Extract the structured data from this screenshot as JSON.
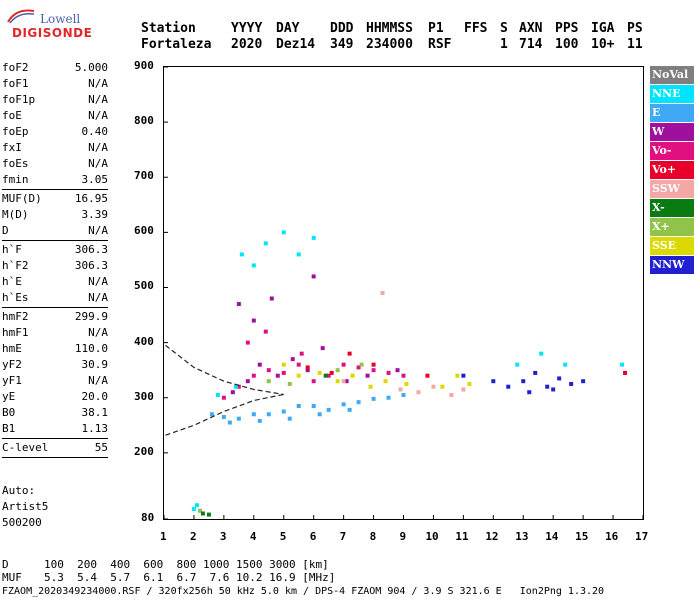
{
  "logo": {
    "line1": "Lowell",
    "line2": "DIGISONDE"
  },
  "header": {
    "labels": {
      "station": "Station",
      "yyyy": "YYYY",
      "day": "DAY",
      "ddd": "DDD",
      "hhmmss": "HHMMSS",
      "p1": "P1",
      "ffs": "FFS",
      "s": "S",
      "axn": "AXN",
      "pps": "PPS",
      "iga": "IGA",
      "ps": "PS"
    },
    "values": {
      "station": "Fortaleza",
      "yyyy": "2020",
      "day": "Dez14",
      "ddd": "349",
      "hhmmss": "234000",
      "p1": "RSF",
      "ffs": "",
      "s": "1",
      "axn": "714",
      "pps": "100",
      "iga": "10+",
      "ps": "11"
    }
  },
  "params": {
    "group1": [
      {
        "k": "foF2",
        "v": "5.000"
      },
      {
        "k": "foF1",
        "v": "N/A"
      },
      {
        "k": "foF1p",
        "v": "N/A"
      },
      {
        "k": "foE",
        "v": "N/A"
      },
      {
        "k": "foEp",
        "v": "0.40"
      },
      {
        "k": "fxI",
        "v": "N/A"
      },
      {
        "k": "foEs",
        "v": "N/A"
      },
      {
        "k": "fmin",
        "v": "3.05"
      }
    ],
    "group2": [
      {
        "k": "MUF(D)",
        "v": "16.95"
      },
      {
        "k": "M(D)",
        "v": "3.39"
      },
      {
        "k": "D",
        "v": "N/A"
      }
    ],
    "group3": [
      {
        "k": "h`F",
        "v": "306.3"
      },
      {
        "k": "h`F2",
        "v": "306.3"
      },
      {
        "k": "h`E",
        "v": "N/A"
      },
      {
        "k": "h`Es",
        "v": "N/A"
      }
    ],
    "group4": [
      {
        "k": "hmF2",
        "v": "299.9"
      },
      {
        "k": "hmF1",
        "v": "N/A"
      },
      {
        "k": "hmE",
        "v": "110.0"
      },
      {
        "k": "yF2",
        "v": "30.9"
      },
      {
        "k": "yF1",
        "v": "N/A"
      },
      {
        "k": "yE",
        "v": "20.0"
      },
      {
        "k": "B0",
        "v": "38.1"
      },
      {
        "k": "B1",
        "v": "1.13"
      }
    ],
    "group5": [
      {
        "k": "C-level",
        "v": "55"
      }
    ]
  },
  "auto": {
    "line1": "Auto:",
    "line2": "Artist5",
    "line3": "500200"
  },
  "chart_data": {
    "type": "scatter",
    "title": "",
    "xlabel": "",
    "ylabel": "",
    "xlim": [
      1,
      17
    ],
    "ylim": [
      80,
      900
    ],
    "xticks": [
      "1",
      "2",
      "3",
      "4",
      "5",
      "6",
      "7",
      "8",
      "9",
      "10",
      "11",
      "12",
      "13",
      "14",
      "15",
      "16",
      "17"
    ],
    "yticks": [
      "80",
      "200",
      "300",
      "400",
      "500",
      "600",
      "700",
      "800",
      "900"
    ],
    "grid": false,
    "legend_position": "right",
    "legend": [
      {
        "name": "NoVal",
        "color": "#7f7f7f"
      },
      {
        "name": "NNE",
        "color": "#00e5ff"
      },
      {
        "name": "E",
        "color": "#3fa9f5"
      },
      {
        "name": "W",
        "color": "#a0109f"
      },
      {
        "name": "Vo-",
        "color": "#e01080"
      },
      {
        "name": "Vo+",
        "color": "#e8002a"
      },
      {
        "name": "SSW",
        "color": "#f4a7a7"
      },
      {
        "name": "X-",
        "color": "#0a7a12"
      },
      {
        "name": "X+",
        "color": "#8fc34a"
      },
      {
        "name": "SSE",
        "color": "#dada00"
      },
      {
        "name": "NNW",
        "color": "#2020d0"
      }
    ],
    "series": [
      {
        "name": "E",
        "points": [
          [
            2.6,
            270
          ],
          [
            3.0,
            265
          ],
          [
            3.5,
            262
          ],
          [
            4.0,
            270
          ],
          [
            4.5,
            270
          ],
          [
            5.0,
            275
          ],
          [
            5.5,
            285
          ],
          [
            6.0,
            285
          ],
          [
            6.5,
            278
          ],
          [
            7.0,
            288
          ],
          [
            7.5,
            292
          ],
          [
            8.0,
            298
          ],
          [
            8.5,
            300
          ],
          [
            9.0,
            305
          ],
          [
            3.2,
            255
          ],
          [
            4.2,
            258
          ],
          [
            5.2,
            262
          ],
          [
            6.2,
            270
          ],
          [
            7.2,
            278
          ]
        ]
      },
      {
        "name": "Vo-",
        "points": [
          [
            3.0,
            300
          ],
          [
            3.5,
            320
          ],
          [
            4.0,
            340
          ],
          [
            4.5,
            350
          ],
          [
            5.0,
            345
          ],
          [
            5.5,
            360
          ],
          [
            6.0,
            330
          ],
          [
            6.5,
            340
          ],
          [
            7.0,
            360
          ],
          [
            7.5,
            355
          ],
          [
            8.0,
            350
          ],
          [
            8.5,
            345
          ],
          [
            9.0,
            340
          ],
          [
            3.8,
            400
          ],
          [
            4.4,
            420
          ],
          [
            5.6,
            380
          ]
        ]
      },
      {
        "name": "W",
        "points": [
          [
            3.3,
            310
          ],
          [
            3.8,
            330
          ],
          [
            4.2,
            360
          ],
          [
            4.8,
            340
          ],
          [
            5.3,
            370
          ],
          [
            5.8,
            350
          ],
          [
            6.3,
            390
          ],
          [
            7.1,
            330
          ],
          [
            7.8,
            340
          ],
          [
            8.8,
            350
          ],
          [
            3.5,
            470
          ],
          [
            4.0,
            440
          ],
          [
            4.6,
            480
          ],
          [
            6.0,
            520
          ]
        ]
      },
      {
        "name": "SSE",
        "points": [
          [
            5.0,
            360
          ],
          [
            5.5,
            340
          ],
          [
            6.2,
            345
          ],
          [
            6.8,
            330
          ],
          [
            7.3,
            340
          ],
          [
            7.9,
            320
          ],
          [
            8.4,
            330
          ],
          [
            9.1,
            325
          ],
          [
            10.3,
            320
          ],
          [
            10.8,
            340
          ],
          [
            11.2,
            325
          ]
        ]
      },
      {
        "name": "NNW",
        "points": [
          [
            11.0,
            340
          ],
          [
            12.0,
            330
          ],
          [
            12.5,
            320
          ],
          [
            13.0,
            330
          ],
          [
            13.4,
            345
          ],
          [
            13.8,
            320
          ],
          [
            14.2,
            335
          ],
          [
            14.6,
            325
          ],
          [
            15.0,
            330
          ],
          [
            13.2,
            310
          ],
          [
            14.0,
            315
          ]
        ]
      },
      {
        "name": "NNE",
        "points": [
          [
            3.6,
            560
          ],
          [
            4.0,
            540
          ],
          [
            4.4,
            580
          ],
          [
            5.0,
            600
          ],
          [
            5.5,
            560
          ],
          [
            6.0,
            590
          ],
          [
            2.8,
            305
          ],
          [
            3.4,
            320
          ],
          [
            12.8,
            360
          ],
          [
            13.6,
            380
          ],
          [
            14.4,
            360
          ],
          [
            16.3,
            360
          ],
          [
            2.1,
            105
          ],
          [
            2.0,
            98
          ]
        ]
      },
      {
        "name": "SSW",
        "points": [
          [
            9.5,
            310
          ],
          [
            10.0,
            320
          ],
          [
            10.6,
            305
          ],
          [
            11.0,
            315
          ],
          [
            8.3,
            490
          ],
          [
            7.0,
            330
          ],
          [
            8.9,
            315
          ]
        ]
      },
      {
        "name": "Vo+",
        "points": [
          [
            5.8,
            355
          ],
          [
            6.6,
            345
          ],
          [
            7.2,
            380
          ],
          [
            8.0,
            360
          ],
          [
            16.4,
            345
          ],
          [
            9.8,
            340
          ]
        ]
      },
      {
        "name": "X+",
        "points": [
          [
            4.5,
            330
          ],
          [
            5.2,
            325
          ],
          [
            6.8,
            350
          ],
          [
            7.6,
            360
          ],
          [
            2.2,
            95
          ]
        ]
      },
      {
        "name": "X-",
        "points": [
          [
            2.3,
            90
          ],
          [
            2.5,
            88
          ],
          [
            6.4,
            340
          ]
        ]
      }
    ]
  },
  "footer": {
    "row1_label": "D",
    "row1_values": "100  200  400  600  800 1000 1500 3000 [km]",
    "row2_label": "MUF",
    "row2_values": "5.3  5.4  5.7  6.1  6.7  7.6 10.2 16.9 [MHz]",
    "info": "FZAOM_2020349234000.RSF / 320fx256h 50 kHz 5.0 km / DPS-4 FZAOM 904 / 3.9 S 321.6 E   Ion2Png 1.3.20"
  }
}
